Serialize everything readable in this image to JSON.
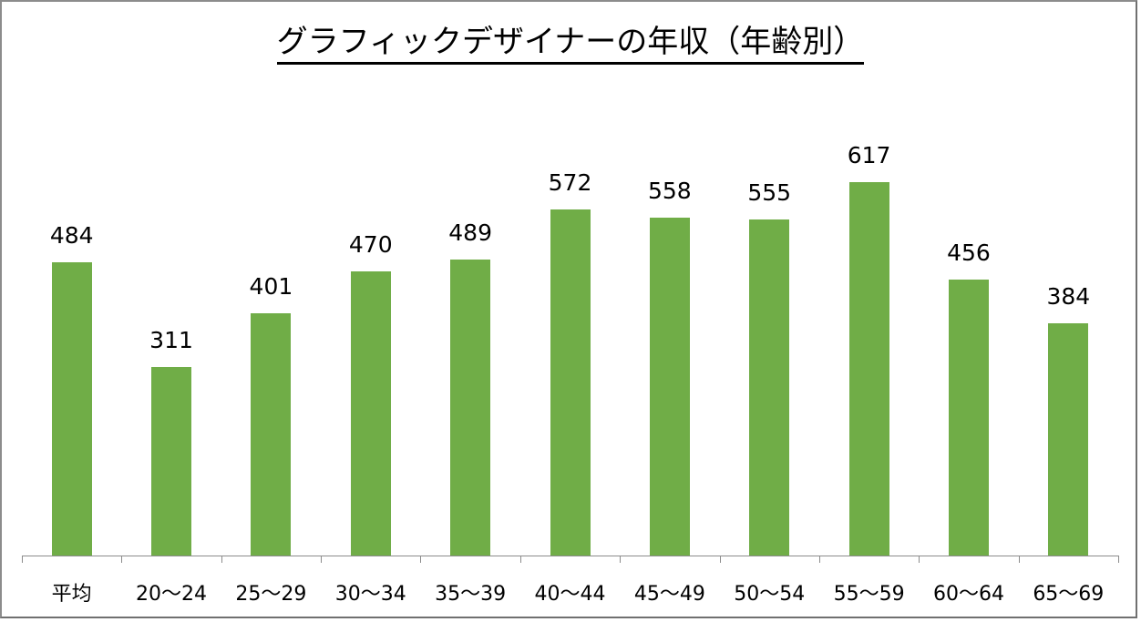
{
  "chart_data": {
    "type": "bar",
    "title": "グラフィックデザイナーの年収（年齢別）",
    "categories": [
      "平均",
      "20〜24",
      "25〜29",
      "30〜34",
      "35〜39",
      "40〜44",
      "45〜49",
      "50〜54",
      "55〜59",
      "60〜64",
      "65〜69"
    ],
    "values": [
      484,
      311,
      401,
      470,
      489,
      572,
      558,
      555,
      617,
      456,
      384
    ],
    "xlabel": "",
    "ylabel": "",
    "ylim": [
      0,
      617
    ],
    "grid": false,
    "legend": "none",
    "data_labels": true,
    "bar_color": "#70ad47"
  }
}
